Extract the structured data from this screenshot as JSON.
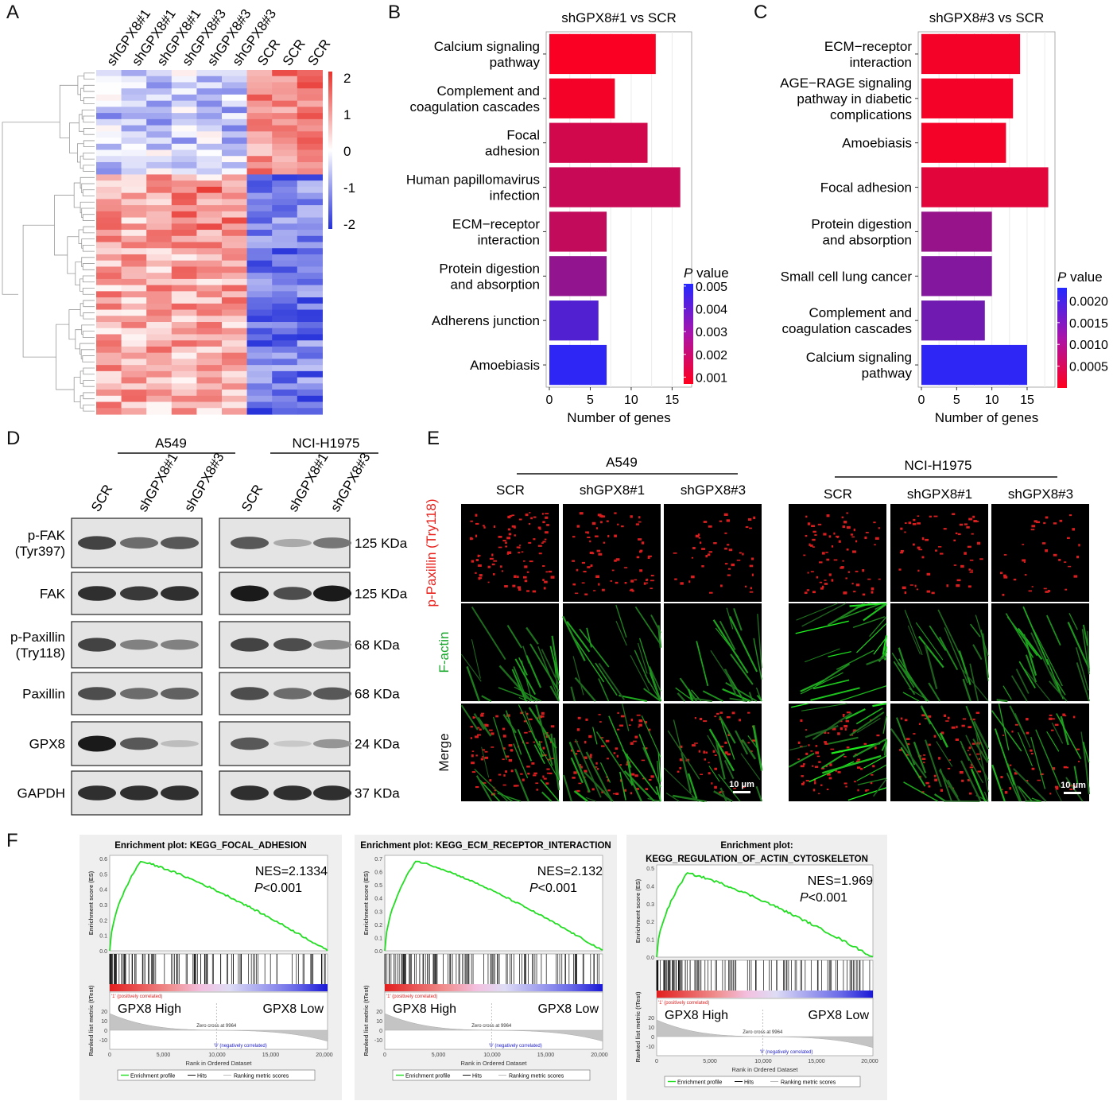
{
  "panel_labels": {
    "A": "A",
    "B": "B",
    "C": "C",
    "D": "D",
    "E": "E",
    "F": "F"
  },
  "heatmap": {
    "columns": [
      "shGPX8#1",
      "shGPX8#1",
      "shGPX8#1",
      "shGPX8#3",
      "shGPX8#3",
      "shGPX8#3",
      "SCR",
      "SCR",
      "SCR"
    ],
    "legend_ticks": [
      "2",
      "1",
      "0",
      "-1",
      "-2"
    ],
    "colors": {
      "high": "#e8322c",
      "mid": "#ffffff",
      "low": "#2430d9"
    }
  },
  "chart_data": [
    {
      "type": "bar",
      "orientation": "horizontal",
      "title": "shGPX8#1 vs SCR",
      "xlabel": "Number of genes",
      "categories": [
        "Calcium signaling pathway",
        "Complement and coagulation cascades",
        "Focal adhesion",
        "Human papillomavirus infection",
        "ECM−receptor interaction",
        "Protein digestion and absorption",
        "Adherens junction",
        "Amoebiasis"
      ],
      "values": [
        13,
        8,
        12,
        16,
        7,
        7,
        6,
        7
      ],
      "pvalues": [
        0.0008,
        0.0009,
        0.0016,
        0.0018,
        0.0019,
        0.0029,
        0.0042,
        0.0049
      ],
      "xticks": [
        "0",
        "5",
        "10",
        "15"
      ],
      "xlim": [
        0,
        17
      ],
      "colorbar": {
        "title_italic": "P",
        "title_rest": " value",
        "ticks": [
          "0.005",
          "0.004",
          "0.003",
          "0.002",
          "0.001"
        ],
        "range": [
          0.0007,
          0.0051
        ]
      }
    },
    {
      "type": "bar",
      "orientation": "horizontal",
      "title": "shGPX8#3 vs SCR",
      "xlabel": "Number of genes",
      "categories": [
        "ECM−receptor interaction",
        "AGE−RAGE signaling pathway in diabetic complications",
        "Amoebiasis",
        "Focal adhesion",
        "Protein digestion and absorption",
        "Small cell lung cancer",
        "Complement and coagulation cascades",
        "Calcium signaling pathway"
      ],
      "values": [
        14,
        13,
        12,
        18,
        10,
        10,
        9,
        15
      ],
      "pvalues": [
        0.0001,
        0.0001,
        0.0001,
        0.0003,
        0.0011,
        0.0013,
        0.0015,
        0.0022
      ],
      "xticks": [
        "0",
        "5",
        "10",
        "15"
      ],
      "xlim": [
        0,
        18.5
      ],
      "colorbar": {
        "title_italic": "P",
        "title_rest": " value",
        "ticks": [
          "0.0020",
          "0.0015",
          "0.0010",
          "0.0005"
        ],
        "range": [
          0.0,
          0.0023
        ]
      }
    }
  ],
  "panelB": {
    "title": "shGPX8#1 vs SCR",
    "xlabel": "Number of genes",
    "labels": [
      [
        "Calcium signaling",
        "pathway"
      ],
      [
        "Complement and",
        "coagulation cascades"
      ],
      [
        "Focal",
        "adhesion"
      ],
      [
        "Human papillomavirus",
        "infection"
      ],
      [
        "ECM−receptor",
        "interaction"
      ],
      [
        "Protein digestion",
        "and absorption"
      ],
      [
        "Adherens junction"
      ],
      [
        "Amoebiasis"
      ]
    ]
  },
  "panelC": {
    "title": "shGPX8#3 vs SCR",
    "xlabel": "Number of genes",
    "labels": [
      [
        "ECM−receptor",
        "interaction"
      ],
      [
        "AGE−RAGE signaling",
        "pathway in diabetic",
        "complications"
      ],
      [
        "Amoebiasis"
      ],
      [
        "Focal adhesion"
      ],
      [
        "Protein digestion",
        "and absorption"
      ],
      [
        "Small cell lung cancer"
      ],
      [
        "Complement and",
        "coagulation cascades"
      ],
      [
        "Calcium signaling",
        "pathway"
      ]
    ]
  },
  "western": {
    "cell_lines": [
      "A549",
      "NCI-H1975"
    ],
    "lanes": [
      "SCR",
      "shGPX8#1",
      "shGPX8#3"
    ],
    "rows": [
      {
        "name": [
          "p-FAK",
          "(Tyr397)"
        ],
        "size": "125 KDa"
      },
      {
        "name": [
          "FAK"
        ],
        "size": "125 KDa"
      },
      {
        "name": [
          "p-Paxillin",
          "(Try118)"
        ],
        "size": "68 KDa"
      },
      {
        "name": [
          "Paxillin"
        ],
        "size": "68 KDa"
      },
      {
        "name": [
          "GPX8"
        ],
        "size": "24 KDa"
      },
      {
        "name": [
          "GAPDH"
        ],
        "size": "37 KDa"
      }
    ],
    "intensity_A549": [
      [
        0.8,
        0.6,
        0.7
      ],
      [
        0.9,
        0.85,
        0.9
      ],
      [
        0.8,
        0.5,
        0.5
      ],
      [
        0.75,
        0.6,
        0.65
      ],
      [
        1.0,
        0.7,
        0.2
      ],
      [
        0.9,
        0.9,
        0.9
      ]
    ],
    "intensity_H1975": [
      [
        0.7,
        0.3,
        0.55
      ],
      [
        1.0,
        0.75,
        1.0
      ],
      [
        0.8,
        0.75,
        0.45
      ],
      [
        0.75,
        0.6,
        0.7
      ],
      [
        0.7,
        0.15,
        0.4
      ],
      [
        0.9,
        0.9,
        0.9
      ]
    ]
  },
  "microscopy": {
    "cell_lines": [
      "A549",
      "NCI-H1975"
    ],
    "columns": [
      "SCR",
      "shGPX8#1",
      "shGPX8#3"
    ],
    "rows": [
      "p-Paxillin (Try118)",
      "F-actin",
      "Merge"
    ],
    "row_colors": [
      "#e8221c",
      "#1aa82e",
      "#111111"
    ],
    "scale_bar": "10 μm"
  },
  "gsea": [
    {
      "title": [
        "Enrichment plot: KEGG_FOCAL_ADHESION"
      ],
      "nes": "NES=2.1334",
      "p": "<0.001",
      "peak": 0.58,
      "ymax": 0.6,
      "yticks": [
        "0.6",
        "0.5",
        "0.4",
        "0.3",
        "0.2",
        "0.1",
        "0.0"
      ]
    },
    {
      "title": [
        "Enrichment plot: KEGG_ECM_RECEPTOR_INTERACTION"
      ],
      "nes": "NES=2.132",
      "p": "<0.001",
      "peak": 0.68,
      "ymax": 0.7,
      "yticks": [
        "0.7",
        "0.6",
        "0.5",
        "0.4",
        "0.3",
        "0.2",
        "0.1",
        "0.0"
      ]
    },
    {
      "title": [
        "Enrichment plot:",
        "KEGG_REGULATION_OF_ACTIN_CYTOSKELETON"
      ],
      "nes": "NES=1.969",
      "p": "<0.001",
      "peak": 0.47,
      "ymax": 0.5,
      "yticks": [
        "0.5",
        "0.4",
        "0.3",
        "0.2",
        "0.1",
        "0.0"
      ]
    }
  ],
  "gsea_common": {
    "high": "GPX8 High",
    "low": "GPX8 Low",
    "ylabel_top": "Enrichment score (ES)",
    "ylabel_bottom": "Ranked list metric (tTest)",
    "pos": "'1' (positively correlated)",
    "neg": "'0' (negatively correlated)",
    "zero": "Zero cross at 9964",
    "xlabel": "Rank in Ordered Dataset",
    "xticks": [
      "0",
      "5,000",
      "10,000",
      "15,000",
      "20,000"
    ],
    "rank_yticks": [
      "20",
      "10",
      "0",
      "-10"
    ],
    "legend": [
      "Enrichment profile",
      "Hits",
      "Ranking metric scores"
    ]
  }
}
